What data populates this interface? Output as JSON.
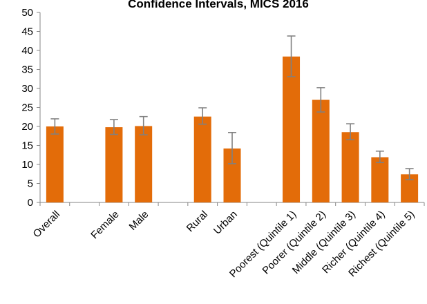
{
  "chart_data": {
    "type": "bar",
    "title": "Confidence Intervals, MICS 2016",
    "xlabel": "",
    "ylabel": "",
    "ylim": [
      0,
      50
    ],
    "yticks": [
      0,
      5,
      10,
      15,
      20,
      25,
      30,
      35,
      40,
      45,
      50
    ],
    "grid": false,
    "legend": "none",
    "bar_color": "#E36C09",
    "error_color": "#808080",
    "categories": [
      "Overall",
      "",
      "Female",
      "Male",
      "",
      "Rural",
      "Urban",
      "",
      "Poorest (Quintile 1)",
      "Poorer (Quintile 2)",
      "Middle (Quintile 3)",
      "Richer (Quintile 4)",
      "Richest (Quintile 5)"
    ],
    "values": [
      20.0,
      null,
      19.8,
      20.1,
      null,
      22.6,
      14.2,
      null,
      38.4,
      27.0,
      18.5,
      11.9,
      7.4
    ],
    "error_low": [
      18.0,
      null,
      17.9,
      17.8,
      null,
      20.6,
      10.2,
      null,
      33.1,
      23.8,
      16.5,
      10.5,
      6.0
    ],
    "error_high": [
      22.0,
      null,
      21.8,
      22.6,
      null,
      24.9,
      18.4,
      null,
      43.8,
      30.2,
      20.7,
      13.5,
      8.9
    ]
  }
}
